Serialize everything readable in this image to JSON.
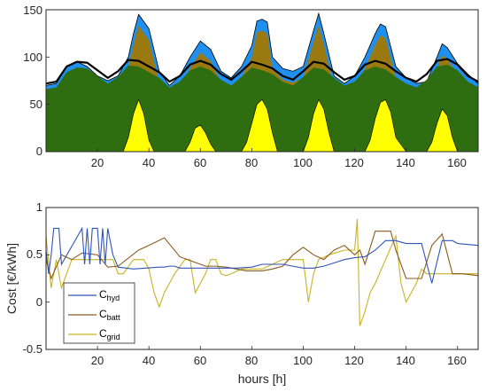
{
  "chart_data": [
    {
      "type": "area",
      "xlim": [
        0,
        168
      ],
      "ylim": [
        0,
        150
      ],
      "xticks": [
        "20",
        "40",
        "60",
        "80",
        "100",
        "120",
        "140",
        "160"
      ],
      "yticks": [
        "0",
        "50",
        "100",
        "150"
      ],
      "xlabel": "",
      "ylabel": "",
      "grid": false,
      "colors": {
        "top": "#1f8ff0",
        "peak": "#ff4500",
        "mid": "#9a7a10",
        "base": "#2e6e10",
        "solar": "#ffff00",
        "dark": "#1a1aaa",
        "line": "#000000"
      },
      "series": [
        {
          "x": [
            0,
            4,
            8,
            12,
            16,
            20,
            24,
            28,
            32,
            34,
            36,
            40,
            44,
            48,
            52,
            56,
            60,
            64,
            68,
            72,
            76,
            80,
            82,
            84,
            86,
            88,
            92,
            96,
            100,
            104,
            106,
            108,
            112,
            116,
            120,
            124,
            128,
            130,
            132,
            136,
            140,
            144,
            148,
            152,
            154,
            156,
            160,
            164,
            168
          ],
          "y": [
            70,
            72,
            90,
            95,
            90,
            80,
            75,
            80,
            100,
            125,
            145,
            130,
            85,
            70,
            80,
            100,
            117,
            108,
            85,
            78,
            90,
            112,
            138,
            140,
            137,
            100,
            88,
            85,
            90,
            128,
            146,
            125,
            80,
            72,
            80,
            100,
            125,
            135,
            132,
            90,
            78,
            72,
            74,
            100,
            114,
            110,
            93,
            82,
            72
          ]
        },
        {
          "x": [
            0,
            4,
            8,
            12,
            16,
            20,
            24,
            28,
            32,
            36,
            40,
            44,
            48,
            52,
            56,
            60,
            64,
            68,
            72,
            76,
            80,
            84,
            88,
            92,
            96,
            100,
            104,
            108,
            112,
            116,
            120,
            124,
            128,
            132,
            136,
            140,
            144,
            148,
            152,
            156,
            160,
            164,
            168
          ],
          "y": [
            72,
            74,
            90,
            95,
            94,
            86,
            78,
            85,
            97,
            96,
            90,
            84,
            74,
            80,
            92,
            96,
            92,
            82,
            76,
            85,
            95,
            92,
            88,
            80,
            76,
            85,
            95,
            93,
            84,
            76,
            80,
            92,
            96,
            93,
            85,
            78,
            74,
            82,
            96,
            98,
            92,
            80,
            74
          ]
        },
        {
          "x": [
            0,
            28,
            30,
            32,
            34,
            36,
            38,
            40,
            42,
            52,
            54,
            56,
            58,
            60,
            62,
            64,
            66,
            74,
            76,
            78,
            80,
            82,
            84,
            86,
            88,
            90,
            98,
            100,
            102,
            104,
            106,
            108,
            110,
            112,
            120,
            124,
            126,
            128,
            130,
            132,
            134,
            136,
            140,
            146,
            148,
            150,
            152,
            154,
            156,
            158,
            160,
            168
          ],
          "y": [
            0,
            0,
            0,
            15,
            40,
            55,
            40,
            12,
            0,
            0,
            0,
            10,
            25,
            28,
            20,
            8,
            0,
            0,
            0,
            10,
            30,
            50,
            55,
            45,
            20,
            0,
            0,
            0,
            15,
            40,
            55,
            45,
            20,
            0,
            0,
            0,
            12,
            35,
            52,
            55,
            42,
            15,
            0,
            0,
            0,
            10,
            30,
            45,
            38,
            15,
            0,
            0
          ]
        }
      ]
    },
    {
      "type": "line",
      "xlim": [
        0,
        168
      ],
      "ylim": [
        -0.5,
        1
      ],
      "xticks": [
        "20",
        "40",
        "60",
        "80",
        "100",
        "120",
        "140",
        "160"
      ],
      "yticks": [
        "-0.5",
        "0",
        "0.5",
        "1"
      ],
      "xlabel": "hours [h]",
      "ylabel": "Cost [€/kWh]",
      "grid": false,
      "legend_position": "bottom-left",
      "series": [
        {
          "name_main": "C",
          "name_sub": "hyd",
          "color": "#2f55b7",
          "x": [
            0,
            1,
            2,
            3,
            5,
            6,
            14,
            15,
            16,
            17,
            18,
            20,
            21,
            22,
            23,
            24,
            26,
            28,
            34,
            44,
            46,
            48,
            50,
            52,
            54,
            56,
            62,
            64,
            66,
            68,
            70,
            72,
            74,
            80,
            84,
            92,
            100,
            104,
            108,
            116,
            120,
            124,
            128,
            132,
            136,
            140,
            146,
            150,
            154,
            158,
            160,
            168
          ],
          "y": [
            0.55,
            0.3,
            0.5,
            0.78,
            0.78,
            0.4,
            0.78,
            0.4,
            0.78,
            0.4,
            0.78,
            0.78,
            0.4,
            0.78,
            0.4,
            0.78,
            0.5,
            0.37,
            0.35,
            0.37,
            0.37,
            0.38,
            0.38,
            0.36,
            0.36,
            0.36,
            0.36,
            0.36,
            0.36,
            0.36,
            0.36,
            0.36,
            0.36,
            0.37,
            0.4,
            0.4,
            0.36,
            0.36,
            0.38,
            0.45,
            0.47,
            0.48,
            0.55,
            0.65,
            0.65,
            0.62,
            0.62,
            0.2,
            0.65,
            0.65,
            0.62,
            0.6
          ]
        },
        {
          "name_main": "C",
          "name_sub": "batt",
          "color": "#8b5a1c",
          "x": [
            0,
            2,
            6,
            10,
            14,
            20,
            24,
            28,
            36,
            40,
            46,
            52,
            58,
            62,
            66,
            70,
            74,
            78,
            80,
            84,
            88,
            92,
            96,
            100,
            104,
            108,
            112,
            116,
            120,
            122,
            124,
            128,
            134,
            136,
            140,
            146,
            150,
            154,
            158,
            162,
            168
          ],
          "y": [
            0.45,
            0.25,
            0.5,
            0.45,
            0.52,
            0.5,
            0.37,
            0.38,
            0.55,
            0.6,
            0.68,
            0.48,
            0.42,
            0.38,
            0.38,
            0.37,
            0.35,
            0.33,
            0.33,
            0.33,
            0.35,
            0.38,
            0.5,
            0.58,
            0.5,
            0.45,
            0.55,
            0.6,
            0.5,
            0.55,
            0.4,
            0.75,
            0.75,
            0.55,
            0.25,
            0.25,
            0.6,
            0.72,
            0.3,
            0.3,
            0.28
          ]
        },
        {
          "name_main": "C",
          "name_sub": "grid",
          "color": "#c8b424",
          "x": [
            0,
            2,
            4,
            6,
            8,
            10,
            14,
            18,
            22,
            26,
            28,
            30,
            34,
            38,
            40,
            42,
            44,
            46,
            48,
            50,
            54,
            56,
            58,
            60,
            62,
            64,
            66,
            68,
            70,
            72,
            76,
            80,
            84,
            88,
            92,
            96,
            100,
            102,
            104,
            106,
            110,
            116,
            120,
            121,
            122,
            124,
            126,
            128,
            132,
            136,
            138,
            140,
            144,
            146,
            148,
            150,
            152,
            154,
            156,
            158,
            160,
            162,
            164,
            166,
            168
          ],
          "y": [
            0.7,
            0.15,
            0.45,
            0.15,
            0.3,
            0.45,
            0.45,
            0.45,
            0.45,
            0.45,
            0.3,
            0.3,
            0.45,
            0.45,
            0.35,
            0.1,
            -0.05,
            0.1,
            0.2,
            0.3,
            0.45,
            0.45,
            0.1,
            0.2,
            0.3,
            0.45,
            0.45,
            0.3,
            0.28,
            0.3,
            0.35,
            0.35,
            0.35,
            0.4,
            0.45,
            0.45,
            0.45,
            0.0,
            0.3,
            0.45,
            0.5,
            0.55,
            0.55,
            0.88,
            -0.25,
            -0.1,
            0.1,
            0.2,
            0.45,
            0.7,
            0.2,
            0.0,
            0.2,
            0.35,
            0.3,
            0.3,
            0.3,
            0.3,
            0.3,
            0.3,
            0.3,
            0.3,
            0.3,
            0.3,
            0.3
          ]
        }
      ]
    }
  ]
}
